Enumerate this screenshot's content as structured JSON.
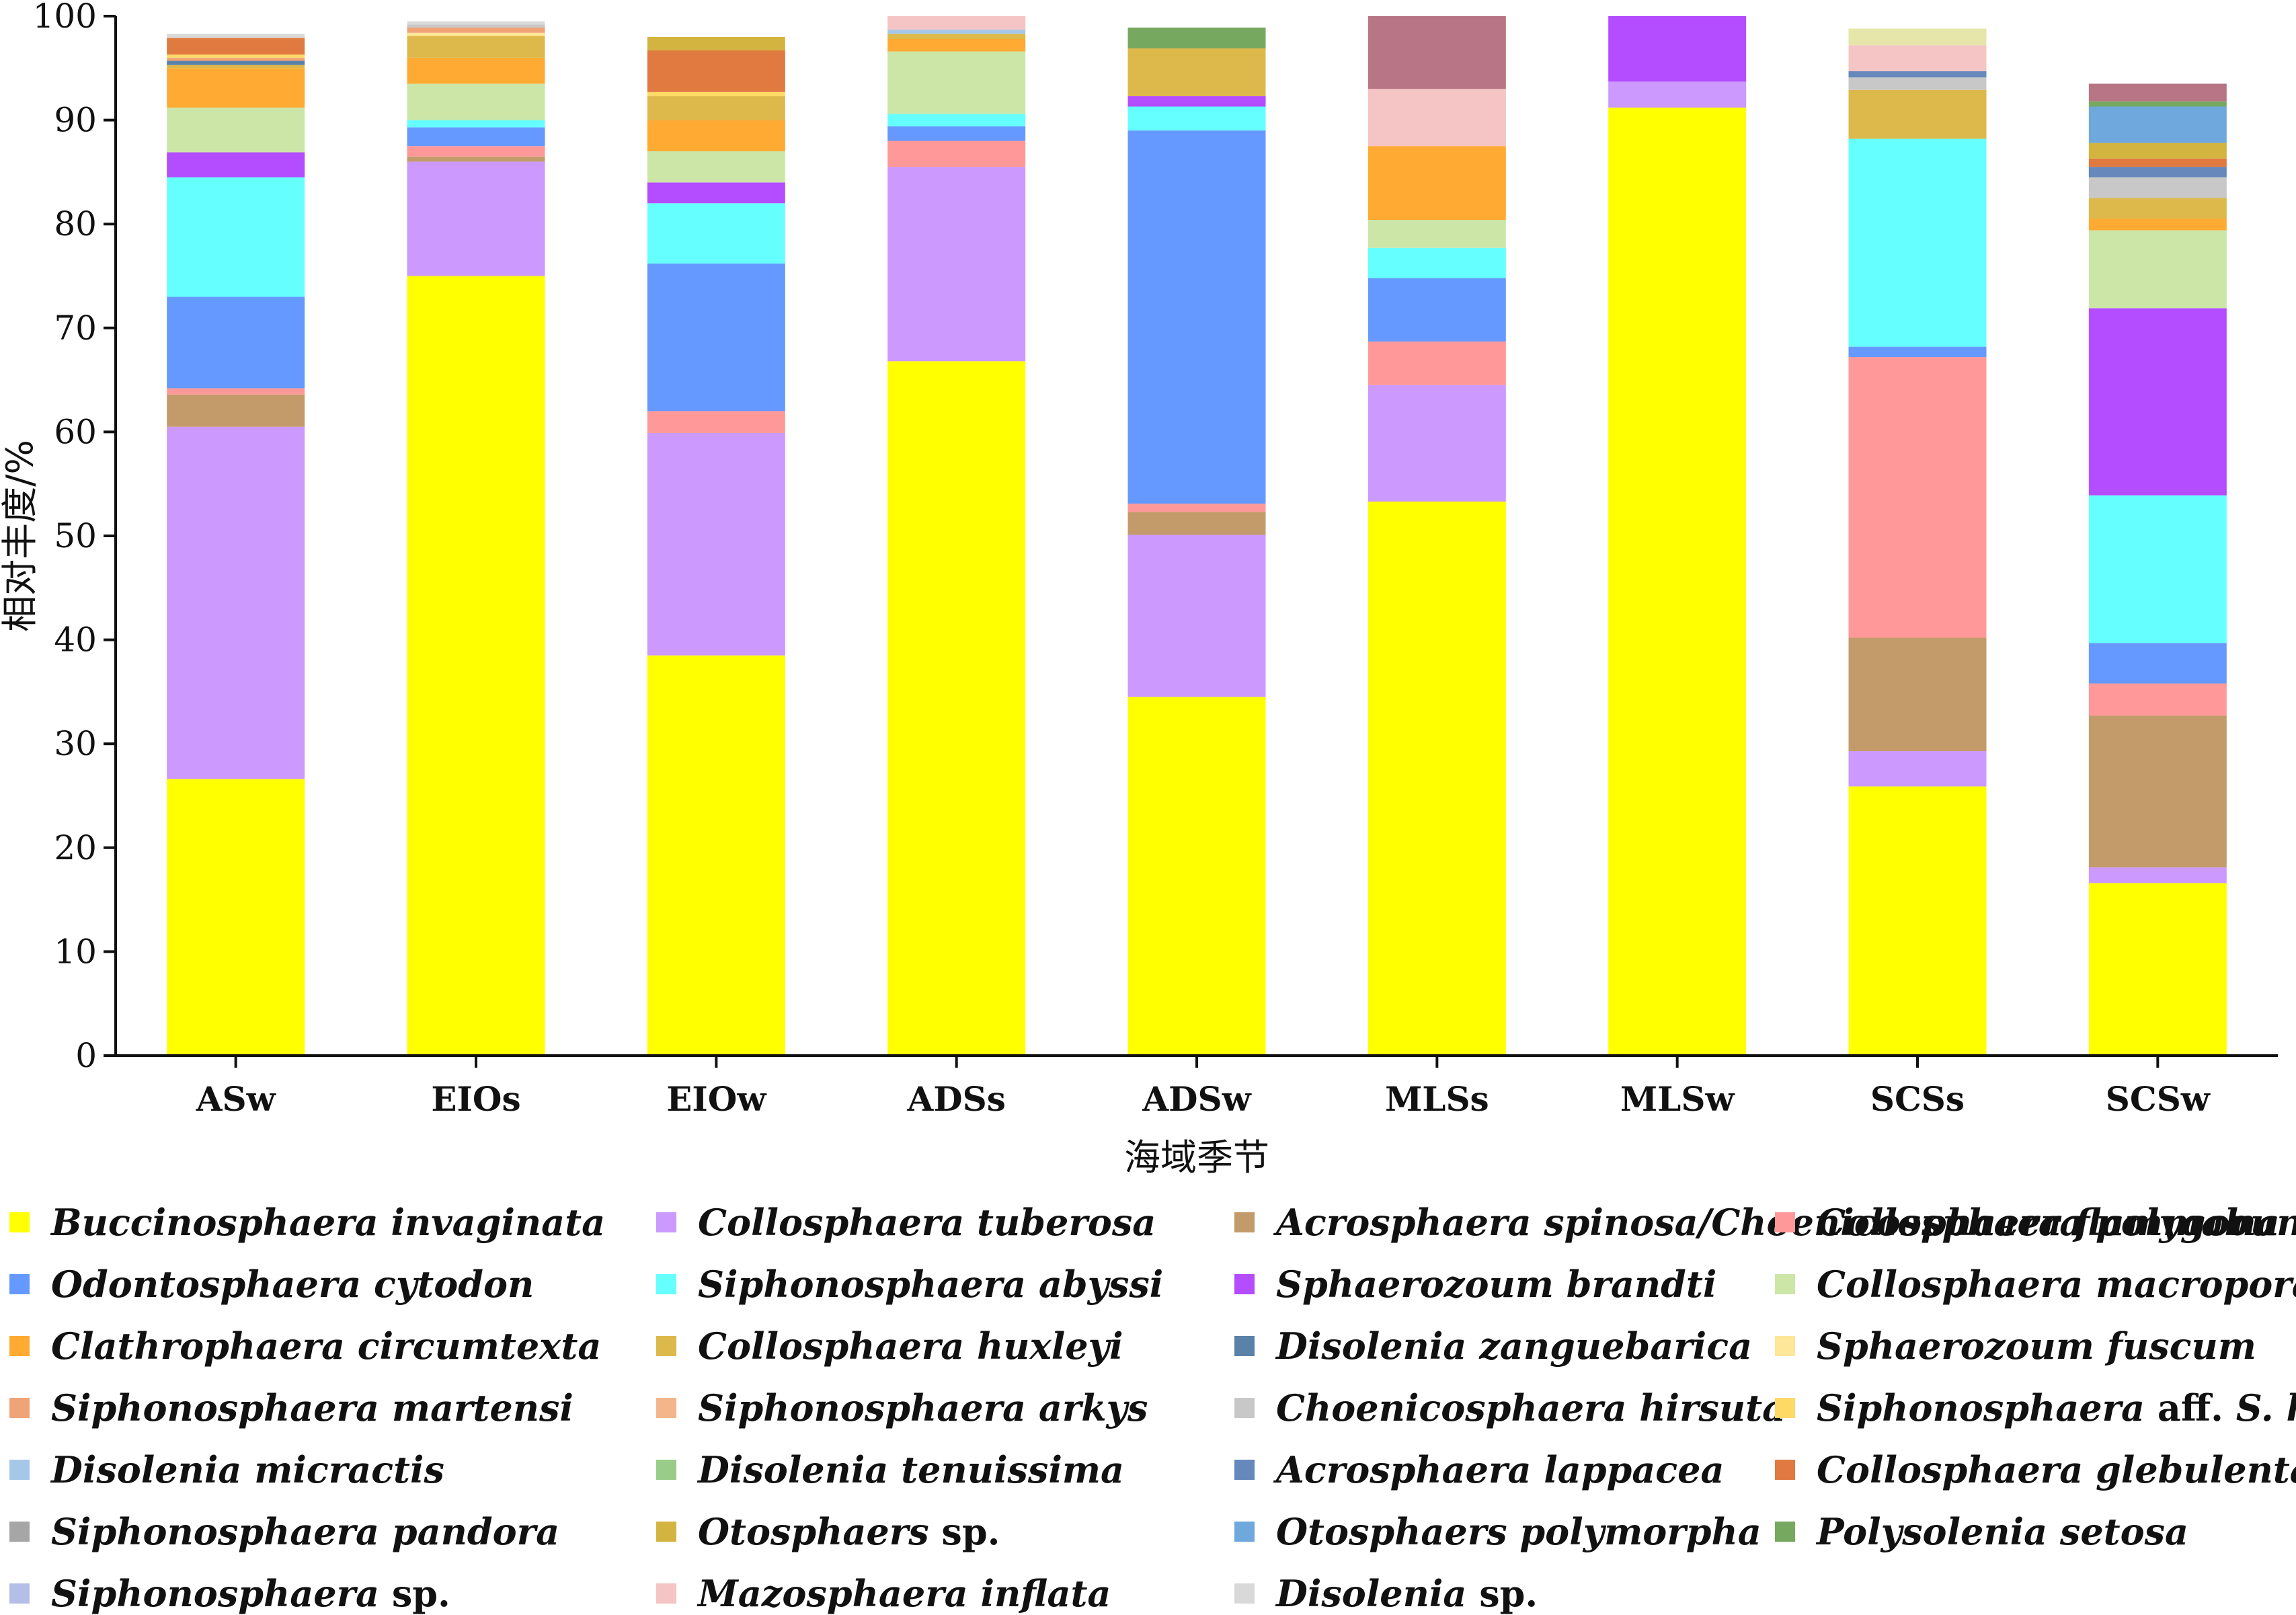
{
  "chart_data": {
    "type": "bar",
    "stacked": true,
    "xlabel": "海域季节",
    "ylabel": "相对丰度/%",
    "ylim": [
      0,
      100
    ],
    "yticks": [
      0,
      10,
      20,
      30,
      40,
      50,
      60,
      70,
      80,
      90,
      100
    ],
    "categories": [
      "ASw",
      "EIOs",
      "EIOw",
      "ADSs",
      "ADSw",
      "MLSs",
      "MLSw",
      "SCSs",
      "SCSw"
    ],
    "legend_position": "bottom",
    "series": [
      {
        "name": "Buccinosphaera invaginata",
        "color": "#FFFF00",
        "values": [
          26.6,
          75.0,
          38.5,
          66.8,
          34.5,
          53.3,
          91.2,
          25.9,
          16.6
        ]
      },
      {
        "name": "Collosphaera tuberosa",
        "color": "#CC99FF",
        "values": [
          33.9,
          11.0,
          21.4,
          18.7,
          15.6,
          11.2,
          2.5,
          3.4,
          1.5
        ]
      },
      {
        "name": "Acrosphaera spinosa/Choenicosphaera flammabunda",
        "color": "#C39B6A",
        "values": [
          3.1,
          0.5,
          0.0,
          0.0,
          2.2,
          0.0,
          0.0,
          10.9,
          14.6
        ]
      },
      {
        "name": "Collosphaera polygona",
        "color": "#FF9999",
        "values": [
          0.6,
          1.0,
          2.1,
          2.5,
          0.8,
          4.2,
          0.0,
          27.0,
          3.1
        ]
      },
      {
        "name": "Odontosphaera cytodon",
        "color": "#6699FF",
        "values": [
          8.8,
          1.8,
          14.2,
          1.4,
          35.9,
          6.1,
          0.0,
          1.0,
          3.9
        ]
      },
      {
        "name": "Siphonosphaera abyssi",
        "color": "#66FFFF",
        "values": [
          11.5,
          0.7,
          5.8,
          1.2,
          2.3,
          2.9,
          0.0,
          20.0,
          14.2
        ]
      },
      {
        "name": "Sphaerozoum brandti",
        "color": "#B44CFF",
        "values": [
          2.4,
          0.0,
          2.0,
          0.0,
          1.0,
          0.0,
          6.3,
          0.0,
          18.0
        ]
      },
      {
        "name": "Collosphaera macropora",
        "color": "#CCE6A8",
        "values": [
          4.3,
          3.5,
          3.0,
          6.0,
          0.0,
          2.7,
          0.0,
          0.0,
          7.5
        ]
      },
      {
        "name": "Clathrophaera circumtexta",
        "color": "#FFAA33",
        "values": [
          3.8,
          2.5,
          3.0,
          1.2,
          0.0,
          7.1,
          0.0,
          0.0,
          1.1
        ]
      },
      {
        "name": "Collosphaera huxleyi",
        "color": "#DDB84A",
        "values": [
          0.3,
          2.1,
          2.3,
          0.5,
          4.6,
          0.0,
          0.0,
          4.7,
          2.0
        ]
      },
      {
        "name": "Disolenia zanguebarica",
        "color": "#5A82A8",
        "values": [
          0.4,
          0.0,
          0.0,
          0.0,
          0.0,
          0.0,
          0.0,
          0.0,
          0.0
        ]
      },
      {
        "name": "Sphaerozoum fuscum",
        "color": "#FFE799",
        "values": [
          0.0,
          0.3,
          0.0,
          0.0,
          0.0,
          0.0,
          0.0,
          0.0,
          0.0
        ]
      },
      {
        "name": "Siphonosphaera martensi",
        "color": "#F0A377",
        "values": [
          0.3,
          0.5,
          0.0,
          0.0,
          0.0,
          0.0,
          0.0,
          0.0,
          0.0
        ]
      },
      {
        "name": "Siphonosphaera arkys",
        "color": "#F5B58A",
        "values": [
          0.0,
          0.0,
          0.0,
          0.0,
          0.0,
          0.0,
          0.0,
          0.0,
          0.0
        ]
      },
      {
        "name": "Choenicosphaera hirsuta",
        "color": "#C8C8C8",
        "values": [
          0.0,
          0.3,
          0.0,
          0.0,
          0.0,
          0.0,
          0.0,
          1.2,
          2.0
        ]
      },
      {
        "name": "Siphonosphaera aff. S. hippotis",
        "color": "#FFD966",
        "values": [
          0.3,
          0.0,
          0.4,
          0.0,
          0.0,
          0.0,
          0.0,
          0.0,
          0.0
        ]
      },
      {
        "name": "Disolenia micractis",
        "color": "#A6C8E8",
        "values": [
          0.0,
          0.0,
          0.0,
          0.4,
          0.0,
          0.0,
          0.0,
          0.0,
          0.0
        ]
      },
      {
        "name": "Disolenia tenuissima",
        "color": "#99CC88",
        "values": [
          0.0,
          0.0,
          0.0,
          0.0,
          0.0,
          0.0,
          0.0,
          0.0,
          0.0
        ]
      },
      {
        "name": "Acrosphaera lappacea",
        "color": "#6688BB",
        "values": [
          0.0,
          0.0,
          0.0,
          0.0,
          0.0,
          0.0,
          0.0,
          0.6,
          1.0
        ]
      },
      {
        "name": "Collosphaera glebulenta",
        "color": "#E07A40",
        "values": [
          1.6,
          0.0,
          4.0,
          0.0,
          0.0,
          0.0,
          0.0,
          0.0,
          0.8
        ]
      },
      {
        "name": "Siphonosphaera pandora",
        "color": "#A6A6A6",
        "values": [
          0.0,
          0.0,
          0.0,
          0.0,
          0.0,
          0.0,
          0.0,
          0.0,
          0.0
        ]
      },
      {
        "name": "Otosphaers sp.",
        "color": "#D4B440",
        "values": [
          0.0,
          0.0,
          1.3,
          0.0,
          0.0,
          0.0,
          0.0,
          0.0,
          1.5
        ]
      },
      {
        "name": "Otosphaers polymorpha",
        "color": "#6FA8DC",
        "values": [
          0.0,
          0.0,
          0.0,
          0.0,
          0.0,
          0.0,
          0.0,
          0.0,
          3.5
        ]
      },
      {
        "name": "Polysolenia setosa",
        "color": "#77A860",
        "values": [
          0.0,
          0.0,
          0.0,
          0.0,
          2.0,
          0.0,
          0.0,
          0.0,
          0.5
        ]
      },
      {
        "name": "Siphonosphaera sp.",
        "color": "#B4BEE6",
        "values": [
          0.0,
          0.0,
          0.0,
          0.0,
          0.0,
          0.0,
          0.0,
          0.0,
          0.0
        ]
      },
      {
        "name": "Mazosphaera inflata",
        "color": "#F5C4C4",
        "values": [
          0.0,
          0.0,
          0.0,
          1.3,
          0.0,
          5.5,
          0.0,
          2.5,
          0.0
        ]
      },
      {
        "name": "Disolenia sp.",
        "color": "#D9D9D9",
        "values": [
          0.4,
          0.3,
          0.0,
          0.0,
          0.0,
          0.0,
          0.0,
          0.0,
          0.0
        ]
      },
      {
        "name": "",
        "color": "#B87585",
        "values": [
          0.0,
          0.0,
          0.0,
          0.0,
          0.0,
          7.0,
          0.0,
          0.0,
          1.7
        ]
      },
      {
        "name": "",
        "color": "#E6E6AA",
        "values": [
          0.0,
          0.0,
          0.0,
          0.0,
          0.0,
          0.0,
          0.0,
          1.6,
          0.0
        ]
      }
    ]
  }
}
